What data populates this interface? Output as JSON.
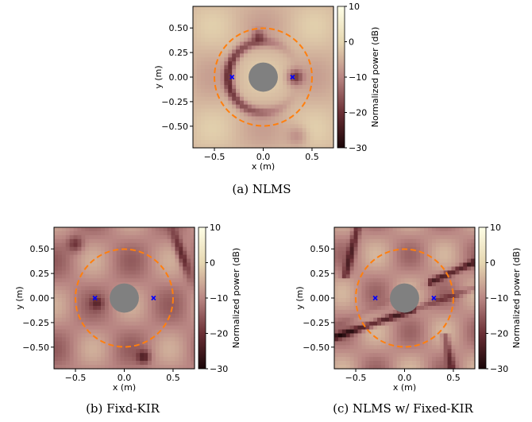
{
  "chart_data": [
    {
      "type": "heatmap",
      "caption": "(a) NLMS",
      "xlabel": "x (m)",
      "ylabel": "y (m)",
      "xlim": [
        -0.72,
        0.72
      ],
      "ylim": [
        -0.72,
        0.72
      ],
      "xticks": [
        -0.5,
        0.0,
        0.5
      ],
      "xtick_labels": [
        "−0.5",
        "0.0",
        "0.5"
      ],
      "yticks": [
        0.5,
        0.25,
        0.0,
        -0.25,
        -0.5
      ],
      "ytick_labels": [
        "0.50",
        "0.25",
        "0.00",
        "−0.25",
        "−0.50"
      ],
      "colorbar": {
        "label": "Normalized power (dB)",
        "range": [
          -30,
          10
        ],
        "ticks": [
          10,
          0,
          -10,
          -20,
          -30
        ],
        "tick_labels": [
          "10",
          "0",
          "−10",
          "−20",
          "−30"
        ]
      },
      "circle_radius": 0.5,
      "disk_radius": 0.15,
      "markers": [
        {
          "x": -0.32,
          "y": 0.0
        },
        {
          "x": 0.3,
          "y": 0.0
        }
      ]
    },
    {
      "type": "heatmap",
      "caption": "(b) Fixd-KIR",
      "xlabel": "x (m)",
      "ylabel": "y (m)",
      "xlim": [
        -0.72,
        0.72
      ],
      "ylim": [
        -0.72,
        0.72
      ],
      "xticks": [
        -0.5,
        0.0,
        0.5
      ],
      "xtick_labels": [
        "−0.5",
        "0.0",
        "0.5"
      ],
      "yticks": [
        0.5,
        0.25,
        0.0,
        -0.25,
        -0.5
      ],
      "ytick_labels": [
        "0.50",
        "0.25",
        "0.00",
        "−0.25",
        "−0.50"
      ],
      "colorbar": {
        "label": "Normalized power (dB)",
        "range": [
          -30,
          10
        ],
        "ticks": [
          10,
          0,
          -10,
          -20,
          -30
        ],
        "tick_labels": [
          "10",
          "0",
          "−10",
          "−20",
          "−30"
        ]
      },
      "circle_radius": 0.5,
      "disk_radius": 0.15,
      "markers": [
        {
          "x": -0.3,
          "y": 0.0
        },
        {
          "x": 0.3,
          "y": 0.0
        }
      ]
    },
    {
      "type": "heatmap",
      "caption": "(c) NLMS w/ Fixed-KIR",
      "xlabel": "x (m)",
      "ylabel": "y (m)",
      "xlim": [
        -0.72,
        0.72
      ],
      "ylim": [
        -0.72,
        0.72
      ],
      "xticks": [
        -0.5,
        0.0,
        0.5
      ],
      "xtick_labels": [
        "−0.5",
        "0.0",
        "0.5"
      ],
      "yticks": [
        0.5,
        0.25,
        0.0,
        -0.25,
        -0.5
      ],
      "ytick_labels": [
        "0.50",
        "0.25",
        "0.00",
        "−0.25",
        "−0.50"
      ],
      "colorbar": {
        "label": "Normalized power (dB)",
        "range": [
          -30,
          10
        ],
        "ticks": [
          10,
          0,
          -10,
          -20,
          -30
        ],
        "tick_labels": [
          "10",
          "0",
          "−10",
          "−20",
          "−30"
        ]
      },
      "circle_radius": 0.5,
      "disk_radius": 0.15,
      "markers": [
        {
          "x": -0.3,
          "y": 0.0
        },
        {
          "x": 0.3,
          "y": 0.0
        }
      ]
    }
  ],
  "colors": {
    "circle": "#ff7f0e",
    "disk": "#808080",
    "marker": "#0000ff"
  }
}
